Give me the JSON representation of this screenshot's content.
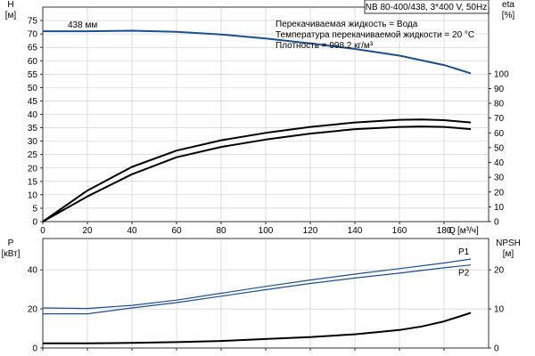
{
  "chart_data": [
    {
      "type": "line",
      "title": "NB 80-400/438, 3*400 V, 50Hz",
      "info_lines": [
        "Перекачиваемая жидкость = Вода",
        "Температура перекачиваемой жидкости = 20 °C",
        "Плотность = 998.2 кг/м³"
      ],
      "xlabel": "Q [м³/ч]",
      "xlabel_parts": [
        "Q",
        "[м³/ч]"
      ],
      "xlim": [
        0,
        200
      ],
      "x_ticks": [
        0,
        20,
        40,
        60,
        80,
        100,
        120,
        140,
        160,
        180
      ],
      "grid": true,
      "left_axis": {
        "label": [
          "H",
          "[м]"
        ],
        "ylim": [
          0,
          80
        ],
        "ticks": [
          0,
          5,
          10,
          15,
          20,
          25,
          30,
          35,
          40,
          45,
          50,
          55,
          60,
          65,
          70,
          75
        ]
      },
      "right_axis": {
        "label": [
          "eta",
          "[%]"
        ],
        "ylim": [
          0,
          145
        ],
        "ticks": [
          0,
          10,
          20,
          30,
          40,
          50,
          60,
          70,
          80,
          90,
          100
        ]
      },
      "series": [
        {
          "name": "438 мм",
          "axis": "left",
          "color": "#1f4e8c",
          "x": [
            0,
            20,
            40,
            60,
            80,
            100,
            120,
            140,
            160,
            180,
            192
          ],
          "y": [
            71,
            71,
            71.2,
            70.8,
            69.8,
            68.3,
            66.5,
            64.4,
            61.9,
            58.4,
            55.3
          ]
        },
        {
          "axis": "right",
          "color": "#000000",
          "x": [
            0,
            20,
            40,
            60,
            80,
            100,
            120,
            140,
            160,
            170,
            180,
            192
          ],
          "y": [
            0,
            21,
            37,
            48,
            55,
            60,
            64,
            67,
            68.8,
            69,
            68.6,
            67
          ]
        },
        {
          "axis": "right",
          "color": "#000000",
          "x": [
            0,
            20,
            40,
            60,
            80,
            100,
            120,
            140,
            160,
            170,
            180,
            192
          ],
          "y": [
            0,
            17,
            32,
            43.5,
            50.5,
            55.5,
            59.5,
            62.5,
            64,
            64.3,
            64,
            62.5
          ]
        }
      ]
    },
    {
      "type": "line",
      "xlim": [
        0,
        200
      ],
      "x_ticks": [
        0,
        20,
        40,
        60,
        80,
        100,
        120,
        140,
        160,
        180
      ],
      "grid": true,
      "left_axis": {
        "label": [
          "P",
          "[кВт]"
        ],
        "ylim": [
          0,
          56
        ],
        "ticks": [
          0,
          20,
          40
        ]
      },
      "right_axis": {
        "label": [
          "NPSH",
          "[м]"
        ],
        "ylim": [
          0,
          28
        ],
        "ticks": [
          0,
          10,
          20
        ]
      },
      "series": [
        {
          "name": "P1",
          "axis": "left",
          "color": "#1f4e8c",
          "x": [
            0,
            20,
            40,
            60,
            80,
            100,
            120,
            140,
            160,
            180,
            192
          ],
          "y": [
            20.5,
            20.2,
            21.8,
            24.5,
            28,
            31.5,
            34.8,
            37.8,
            40.6,
            43.5,
            45.5
          ]
        },
        {
          "name": "P2",
          "axis": "left",
          "color": "#1f4e8c",
          "x": [
            0,
            20,
            40,
            60,
            80,
            100,
            120,
            140,
            160,
            180,
            192
          ],
          "y": [
            17.5,
            17.5,
            20.5,
            23.2,
            26.5,
            29.8,
            33,
            35.8,
            38.3,
            41,
            42.5
          ]
        },
        {
          "axis": "right",
          "color": "#000000",
          "x": [
            0,
            20,
            40,
            60,
            80,
            100,
            120,
            140,
            160,
            170,
            180,
            192
          ],
          "y": [
            1.2,
            1.2,
            1.3,
            1.5,
            1.8,
            2.3,
            2.8,
            3.5,
            4.6,
            5.5,
            6.8,
            9
          ]
        }
      ]
    }
  ]
}
